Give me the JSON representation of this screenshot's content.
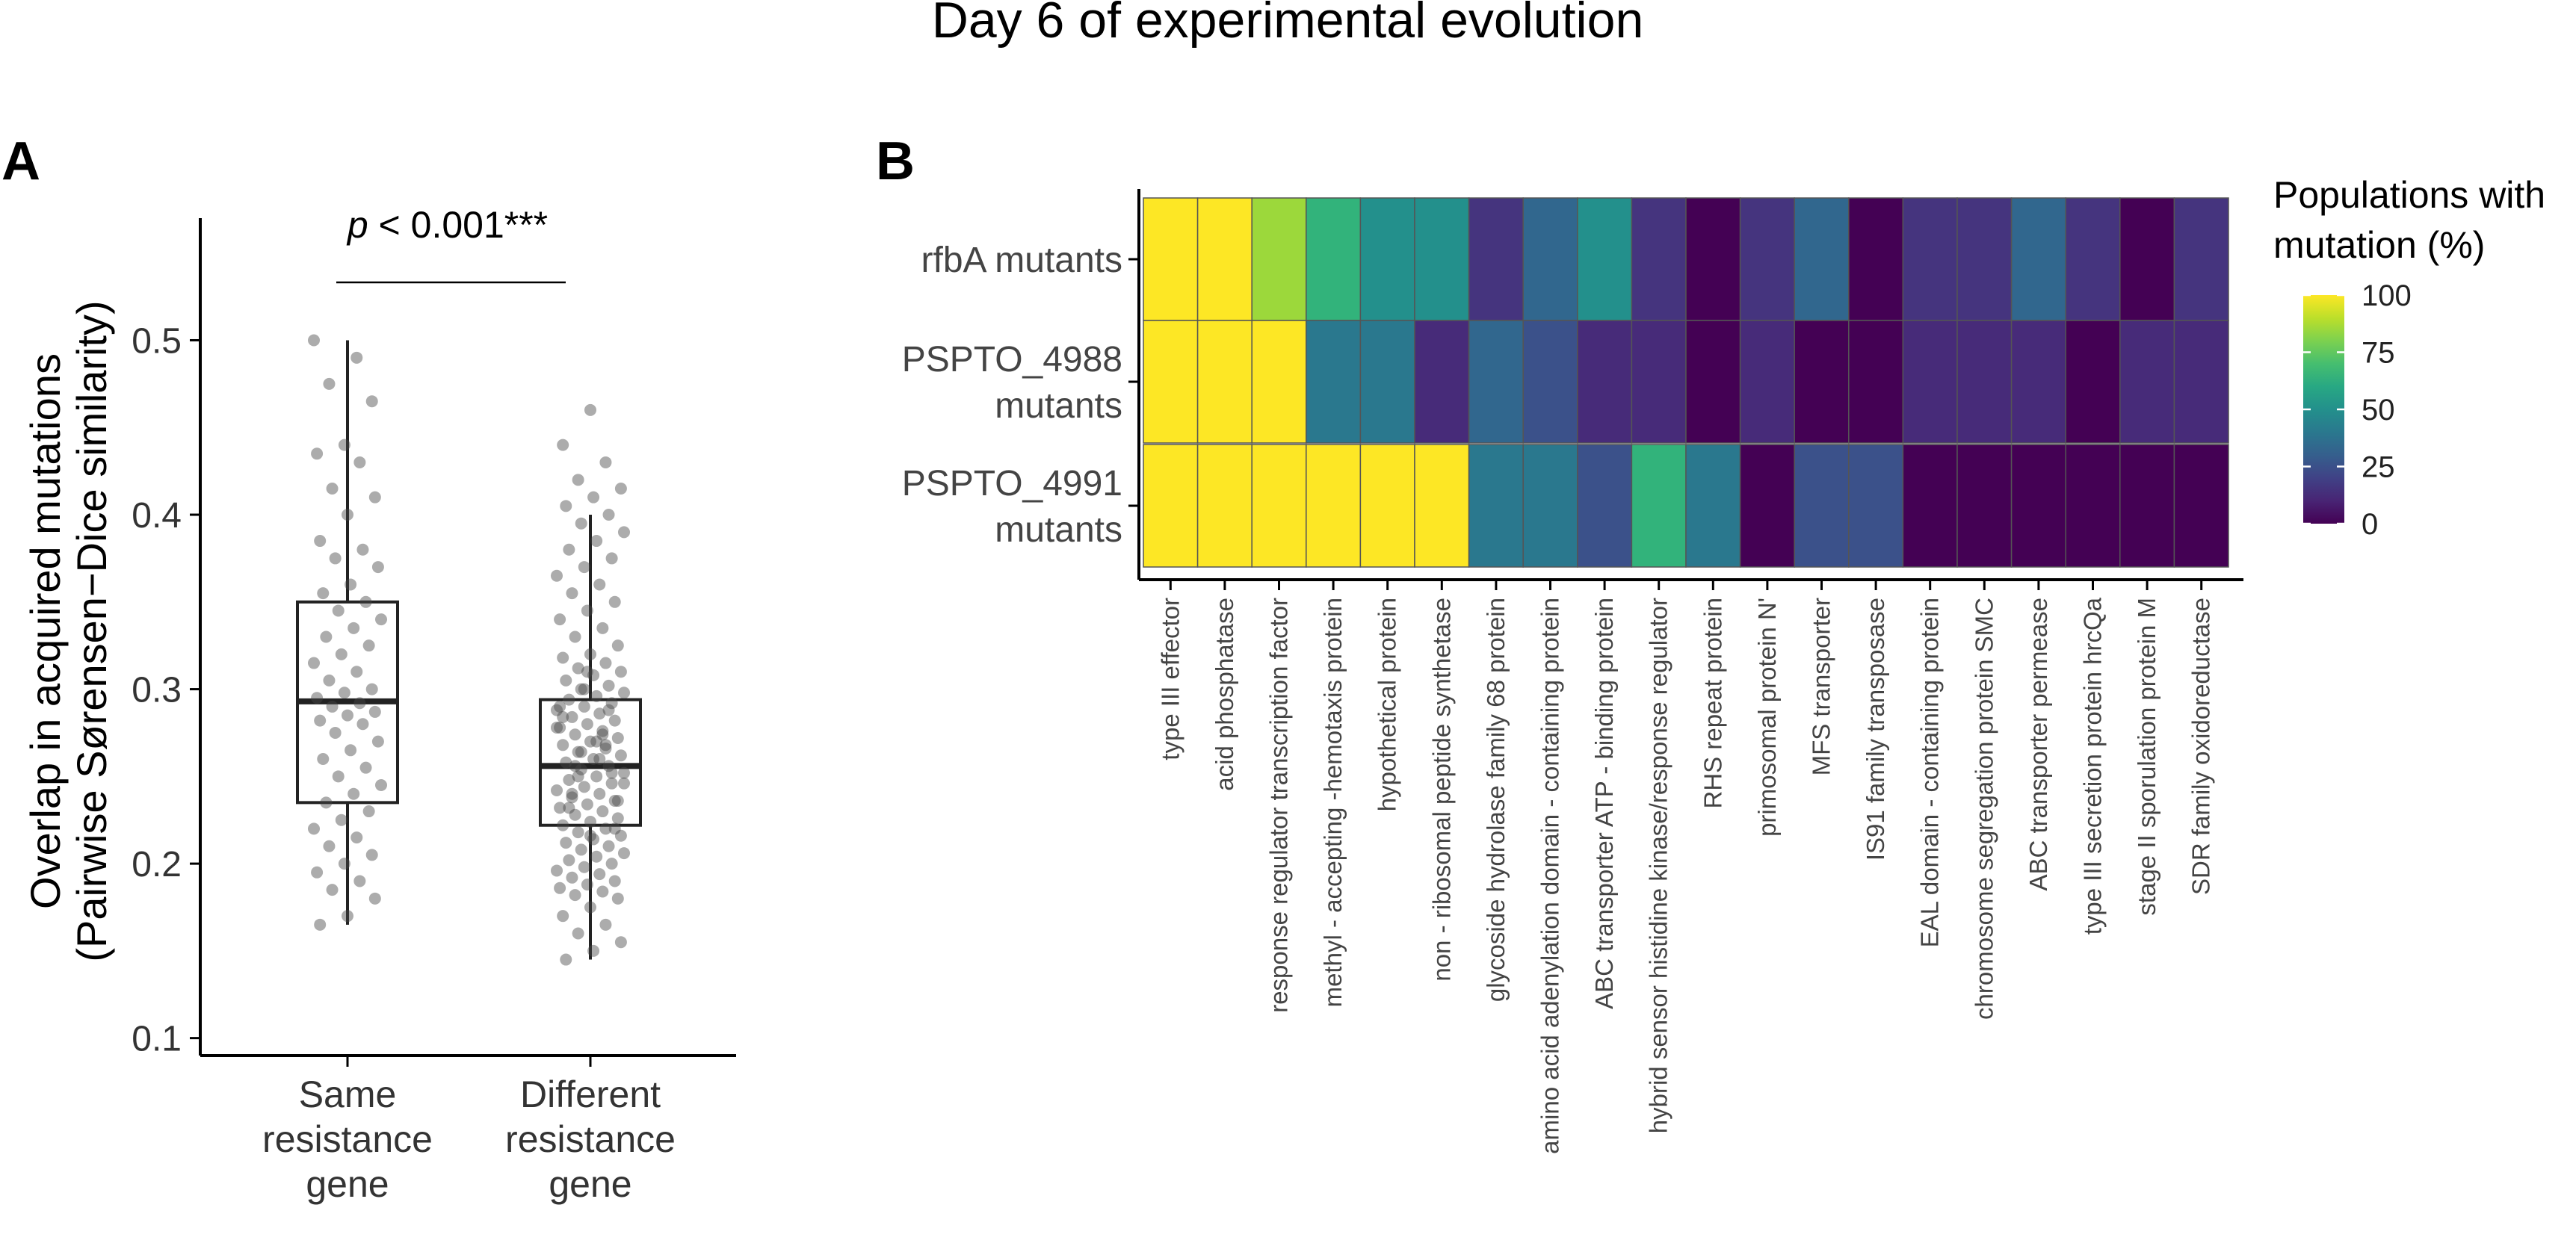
{
  "figure": {
    "title": "Day 6 of experimental evolution"
  },
  "chart_data": [
    {
      "panel": "A",
      "type": "box",
      "title": "",
      "significance_label_italic": "p",
      "significance_label_rest": " < 0.001***",
      "ylabel_line1": "Overlap in acquired mutations",
      "ylabel_line2": "(Pairwise Sørensen−Dice similarity)",
      "ylim": [
        0.09,
        0.57
      ],
      "yticks": [
        0.1,
        0.2,
        0.3,
        0.4,
        0.5
      ],
      "ytick_labels": [
        "0.1",
        "0.2",
        "0.3",
        "0.4",
        "0.5"
      ],
      "categories": [
        {
          "label_lines": [
            "Same",
            "resistance",
            "gene"
          ]
        },
        {
          "label_lines": [
            "Different",
            "resistance",
            "gene"
          ]
        }
      ],
      "boxes": [
        {
          "min": 0.165,
          "q1": 0.235,
          "median": 0.293,
          "q3": 0.35,
          "max": 0.5
        },
        {
          "min": 0.145,
          "q1": 0.222,
          "median": 0.256,
          "q3": 0.294,
          "max": 0.4
        }
      ],
      "points": [
        [
          0.5,
          0.49,
          0.475,
          0.465,
          0.44,
          0.435,
          0.43,
          0.415,
          0.41,
          0.4,
          0.385,
          0.38,
          0.375,
          0.37,
          0.36,
          0.355,
          0.35,
          0.345,
          0.34,
          0.335,
          0.33,
          0.325,
          0.32,
          0.315,
          0.31,
          0.305,
          0.3,
          0.298,
          0.295,
          0.292,
          0.29,
          0.287,
          0.285,
          0.282,
          0.28,
          0.275,
          0.27,
          0.265,
          0.26,
          0.255,
          0.25,
          0.245,
          0.24,
          0.235,
          0.23,
          0.225,
          0.22,
          0.215,
          0.21,
          0.205,
          0.2,
          0.195,
          0.19,
          0.185,
          0.18,
          0.17,
          0.165
        ],
        [
          0.46,
          0.44,
          0.43,
          0.42,
          0.415,
          0.41,
          0.405,
          0.4,
          0.395,
          0.39,
          0.385,
          0.38,
          0.375,
          0.37,
          0.365,
          0.36,
          0.355,
          0.35,
          0.345,
          0.34,
          0.335,
          0.33,
          0.325,
          0.32,
          0.318,
          0.315,
          0.312,
          0.31,
          0.308,
          0.305,
          0.302,
          0.3,
          0.298,
          0.296,
          0.294,
          0.292,
          0.29,
          0.288,
          0.286,
          0.284,
          0.282,
          0.28,
          0.278,
          0.276,
          0.274,
          0.272,
          0.27,
          0.268,
          0.266,
          0.264,
          0.262,
          0.26,
          0.258,
          0.256,
          0.254,
          0.252,
          0.25,
          0.248,
          0.246,
          0.244,
          0.242,
          0.24,
          0.238,
          0.236,
          0.234,
          0.232,
          0.23,
          0.228,
          0.226,
          0.224,
          0.222,
          0.22,
          0.218,
          0.216,
          0.214,
          0.212,
          0.21,
          0.208,
          0.206,
          0.204,
          0.202,
          0.2,
          0.198,
          0.196,
          0.194,
          0.192,
          0.19,
          0.188,
          0.186,
          0.184,
          0.182,
          0.18,
          0.175,
          0.17,
          0.165,
          0.16,
          0.155,
          0.15,
          0.145,
          0.288,
          0.264,
          0.246,
          0.27,
          0.232,
          0.252,
          0.3,
          0.278,
          0.26,
          0.24,
          0.22,
          0.31,
          0.29,
          0.274,
          0.256,
          0.236,
          0.216,
          0.284,
          0.268,
          0.25
        ]
      ]
    },
    {
      "panel": "B",
      "type": "heatmap",
      "title": "",
      "rows": [
        {
          "label_lines": [
            "rfbA mutants"
          ]
        },
        {
          "label_lines": [
            "PSPTO_4988",
            "mutants"
          ]
        },
        {
          "label_lines": [
            "PSPTO_4991",
            "mutants"
          ]
        }
      ],
      "columns": [
        "type III effector",
        "acid phosphatase",
        "response regulator transcription factor",
        "methyl - accepting -hemotaxis protein",
        "hypothetical protein",
        "non - ribosomal peptide synthetase",
        "glycoside hydrolase family 68 protein",
        "amino acid adenylation domain - containing protein",
        "ABC transporter ATP - binding protein",
        "hybrid sensor histidine kinase/response regulator",
        "RHS repeat protein",
        "primosomal protein N'",
        "MFS transporter",
        "IS91 family transposase",
        "EAL domain - containing protein",
        "chromosome segregation protein SMC",
        "ABC transporter permease",
        "type III secretion protein hrcQa",
        "stage II sporulation protein M",
        "SDR family oxidoreductase"
      ],
      "values": [
        [
          100,
          100,
          85,
          65,
          50,
          50,
          15,
          33,
          50,
          15,
          0,
          15,
          33,
          0,
          15,
          15,
          33,
          15,
          0,
          15
        ],
        [
          100,
          100,
          100,
          40,
          40,
          12,
          33,
          25,
          12,
          12,
          0,
          12,
          0,
          0,
          12,
          12,
          12,
          0,
          12,
          12
        ],
        [
          100,
          100,
          100,
          100,
          100,
          100,
          40,
          40,
          25,
          65,
          40,
          0,
          25,
          25,
          0,
          0,
          0,
          0,
          0,
          0
        ]
      ],
      "color_scale": "viridis",
      "value_range": [
        0,
        100
      ],
      "legend_title_lines": [
        "Populations with",
        "mutation (%)"
      ],
      "legend_ticks": [
        0,
        25,
        50,
        75,
        100
      ],
      "legend_tick_labels": [
        "0",
        "25",
        "50",
        "75",
        "100"
      ]
    }
  ]
}
